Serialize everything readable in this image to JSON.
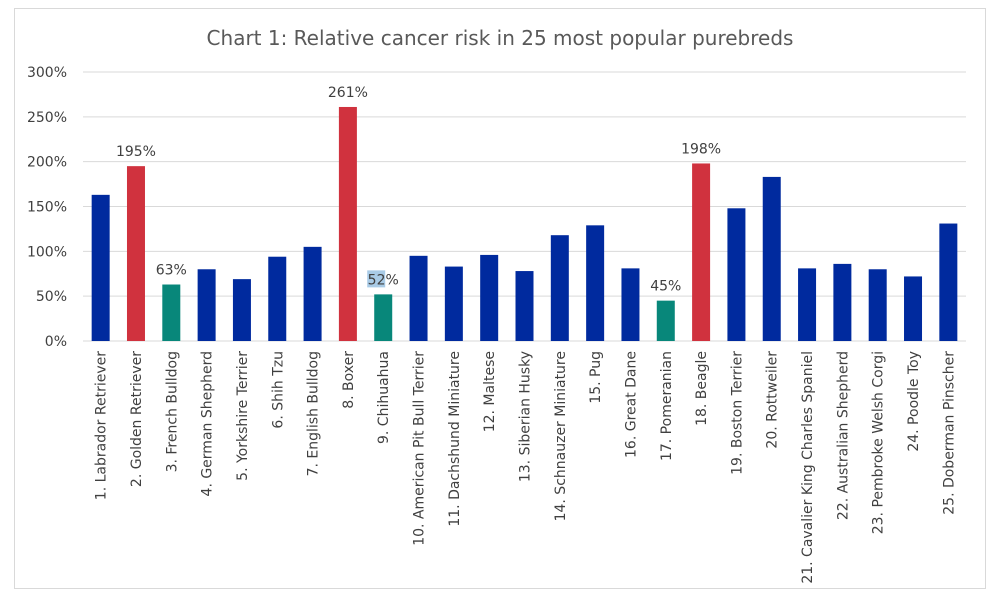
{
  "chart_data": {
    "type": "bar",
    "title": "Chart 1: Relative cancer risk in 25 most popular purebreds",
    "xlabel": "",
    "ylabel": "",
    "ylim": [
      0,
      300
    ],
    "yticks": [
      "0%",
      "50%",
      "100%",
      "150%",
      "200%",
      "250%",
      "300%"
    ],
    "grid": true,
    "legend": "none",
    "categories": [
      "1. Labrador Retriever",
      "2. Golden Retriever",
      "3. French Bulldog",
      "4. German Shepherd",
      "5. Yorkshire Terrier",
      "6. Shih Tzu",
      "7. English Bulldog",
      "8. Boxer",
      "9. Chihuahua",
      "10. American Pit Bull Terrier",
      "11. Dachshund Miniature",
      "12. Maltese",
      "13. Siberian Husky",
      "14. Schnauzer Miniature",
      "15. Pug",
      "16. Great Dane",
      "17. Pomeranian",
      "18. Beagle",
      "19. Boston Terrier",
      "20. Rottweiler",
      "21. Cavalier King Charles Spaniel",
      "22. Australian Shepherd",
      "23. Pembroke Welsh Corgi",
      "24. Poodle Toy",
      "25. Doberman Pinscher"
    ],
    "values": [
      163,
      195,
      63,
      80,
      69,
      94,
      105,
      261,
      52,
      95,
      83,
      96,
      78,
      118,
      129,
      81,
      45,
      198,
      148,
      183,
      81,
      86,
      80,
      72,
      131
    ],
    "bar_groups": [
      "normal",
      "high",
      "low",
      "normal",
      "normal",
      "normal",
      "normal",
      "high",
      "low",
      "normal",
      "normal",
      "normal",
      "normal",
      "normal",
      "normal",
      "normal",
      "low",
      "high",
      "normal",
      "normal",
      "normal",
      "normal",
      "normal",
      "normal",
      "normal"
    ],
    "data_labels": {
      "1": "195%",
      "2": "63%",
      "7": "261%",
      "8": "52%",
      "16": "45%",
      "17": "198%"
    },
    "colors": {
      "normal": "#002A9E",
      "high": "#D0323E",
      "low": "#08877A",
      "grid": "#d9d9d9",
      "highlight": "#a9cbe6"
    }
  }
}
